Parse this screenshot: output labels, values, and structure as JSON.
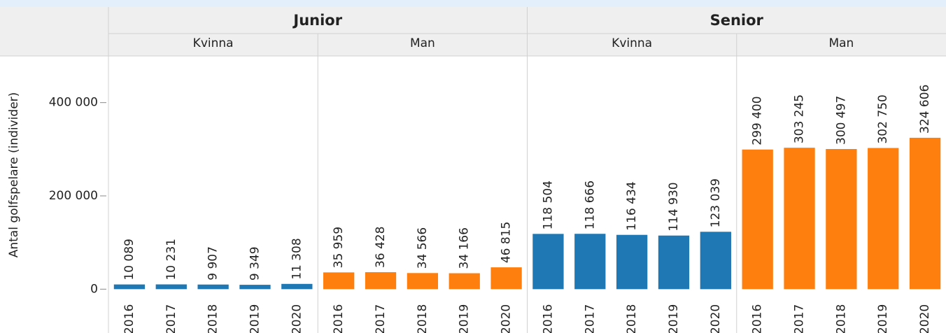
{
  "chart_data": {
    "type": "bar",
    "y_label": "Antal golfspelare (individer)",
    "ylim": [
      -10000,
      500000
    ],
    "yticks": [
      0,
      {
        "value": 200000,
        "label": "200 000"
      },
      {
        "value": 400000,
        "label": "400 000"
      }
    ],
    "groups": [
      {
        "name": "Junior",
        "subgroups": [
          {
            "name": "Kvinna",
            "color": "#1f77b4",
            "categories": [
              "2016",
              "2017",
              "2018",
              "2019",
              "2020"
            ],
            "values": [
              10089,
              10231,
              9907,
              9349,
              11308
            ],
            "value_labels": [
              "10 089",
              "10 231",
              "9 907",
              "9 349",
              "11 308"
            ]
          },
          {
            "name": "Man",
            "color": "#ff7f0e",
            "categories": [
              "2016",
              "2017",
              "2018",
              "2019",
              "2020"
            ],
            "values": [
              35959,
              36428,
              34566,
              34166,
              46815
            ],
            "value_labels": [
              "35 959",
              "36 428",
              "34 566",
              "34 166",
              "46 815"
            ]
          }
        ]
      },
      {
        "name": "Senior",
        "subgroups": [
          {
            "name": "Kvinna",
            "color": "#1f77b4",
            "categories": [
              "2016",
              "2017",
              "2018",
              "2019",
              "2020"
            ],
            "values": [
              118504,
              118666,
              116434,
              114930,
              123039
            ],
            "value_labels": [
              "118 504",
              "118 666",
              "116 434",
              "114 930",
              "123 039"
            ]
          },
          {
            "name": "Man",
            "color": "#ff7f0e",
            "categories": [
              "2016",
              "2017",
              "2018",
              "2019",
              "2020"
            ],
            "values": [
              299400,
              303245,
              300497,
              302750,
              324606
            ],
            "value_labels": [
              "299 400",
              "303 245",
              "300 497",
              "302 750",
              "324 606"
            ]
          }
        ]
      }
    ]
  }
}
